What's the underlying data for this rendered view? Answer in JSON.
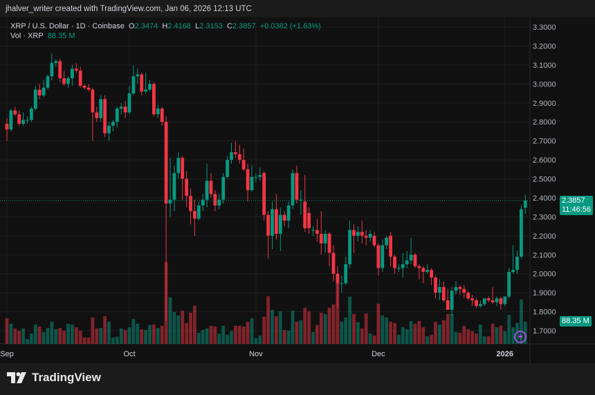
{
  "header": {
    "credit": "jhalver_writer created with TradingView.com, Jan 06, 2026 12:13 UTC"
  },
  "legend": {
    "symbol": "XRP / U.S. Dollar · 1D · Coinbase",
    "open_label": "O",
    "open": "2.3474",
    "high_label": "H",
    "high": "2.4168",
    "low_label": "L",
    "low": "2.3153",
    "close_label": "C",
    "close": "2.3857",
    "change": "+0.0382 (+1.63%)",
    "volume_label": "Vol · XRP",
    "volume": "88.35 M"
  },
  "price_tag": {
    "price": "2.3857",
    "countdown": "11:46:56"
  },
  "volume_tag": "88.35 M",
  "footer": {
    "brand": "TradingView"
  },
  "colors": {
    "up": "#089981",
    "down": "#f23645",
    "background": "#111111",
    "grid": "#1f1f1f"
  },
  "chart_data": {
    "type": "candlestick",
    "interval": "1D",
    "start_date": "2025-09-01",
    "y_ticks": [
      "3.3000",
      "3.2000",
      "3.1000",
      "3.0000",
      "2.9000",
      "2.8000",
      "2.7000",
      "2.6000",
      "2.5000",
      "2.4000",
      "2.3000",
      "2.2000",
      "2.1000",
      "2.0000",
      "1.9000",
      "1.8000",
      "1.7000"
    ],
    "ylim": [
      1.7,
      3.3
    ],
    "x_ticks": [
      {
        "label": "Sep",
        "index": 0
      },
      {
        "label": "Oct",
        "index": 30
      },
      {
        "label": "Nov",
        "index": 61
      },
      {
        "label": "Dec",
        "index": 91
      },
      {
        "label": "2026",
        "index": 122,
        "bold": true
      }
    ],
    "grid": true,
    "ohlc": [
      [
        2.79,
        2.82,
        2.7,
        2.76
      ],
      [
        2.76,
        2.87,
        2.75,
        2.86
      ],
      [
        2.86,
        2.88,
        2.83,
        2.84
      ],
      [
        2.84,
        2.86,
        2.78,
        2.79
      ],
      [
        2.79,
        2.85,
        2.78,
        2.81
      ],
      [
        2.81,
        2.83,
        2.79,
        2.81
      ],
      [
        2.81,
        2.88,
        2.8,
        2.87
      ],
      [
        2.87,
        2.99,
        2.86,
        2.97
      ],
      [
        2.97,
        3.0,
        2.92,
        2.94
      ],
      [
        2.94,
        3.02,
        2.93,
        2.98
      ],
      [
        2.98,
        3.05,
        2.97,
        3.04
      ],
      [
        3.04,
        3.16,
        3.02,
        3.11
      ],
      [
        3.11,
        3.13,
        3.09,
        3.12
      ],
      [
        3.12,
        3.13,
        3.01,
        3.03
      ],
      [
        3.03,
        3.07,
        2.99,
        3.0
      ],
      [
        3.0,
        3.04,
        2.98,
        3.03
      ],
      [
        3.03,
        3.1,
        2.99,
        3.08
      ],
      [
        3.08,
        3.11,
        3.06,
        3.07
      ],
      [
        3.07,
        3.09,
        2.98,
        2.99
      ],
      [
        2.99,
        3.0,
        2.97,
        2.98
      ],
      [
        2.98,
        3.0,
        2.96,
        2.97
      ],
      [
        2.97,
        2.98,
        2.7,
        2.85
      ],
      [
        2.85,
        2.88,
        2.8,
        2.82
      ],
      [
        2.82,
        2.94,
        2.8,
        2.92
      ],
      [
        2.92,
        2.94,
        2.72,
        2.74
      ],
      [
        2.74,
        2.8,
        2.7,
        2.78
      ],
      [
        2.78,
        2.81,
        2.75,
        2.8
      ],
      [
        2.8,
        2.88,
        2.77,
        2.87
      ],
      [
        2.87,
        2.9,
        2.84,
        2.88
      ],
      [
        2.88,
        2.91,
        2.82,
        2.85
      ],
      [
        2.85,
        2.99,
        2.84,
        2.95
      ],
      [
        2.95,
        3.1,
        2.94,
        3.04
      ],
      [
        3.04,
        3.08,
        3.0,
        3.05
      ],
      [
        3.05,
        3.06,
        2.94,
        2.96
      ],
      [
        2.96,
        3.06,
        2.95,
        2.97
      ],
      [
        2.97,
        3.02,
        2.96,
        3.0
      ],
      [
        3.0,
        3.01,
        2.83,
        2.84
      ],
      [
        2.84,
        2.89,
        2.82,
        2.87
      ],
      [
        2.87,
        2.88,
        2.78,
        2.8
      ],
      [
        2.8,
        2.83,
        1.75,
        2.37
      ],
      [
        2.37,
        2.61,
        2.3,
        2.39
      ],
      [
        2.39,
        2.57,
        2.33,
        2.53
      ],
      [
        2.53,
        2.64,
        2.5,
        2.61
      ],
      [
        2.61,
        2.62,
        2.39,
        2.5
      ],
      [
        2.5,
        2.54,
        2.35,
        2.41
      ],
      [
        2.41,
        2.45,
        2.26,
        2.33
      ],
      [
        2.33,
        2.39,
        2.2,
        2.29
      ],
      [
        2.29,
        2.38,
        2.28,
        2.36
      ],
      [
        2.36,
        2.42,
        2.33,
        2.39
      ],
      [
        2.39,
        2.58,
        2.35,
        2.49
      ],
      [
        2.49,
        2.53,
        2.4,
        2.42
      ],
      [
        2.42,
        2.44,
        2.33,
        2.36
      ],
      [
        2.36,
        2.42,
        2.34,
        2.39
      ],
      [
        2.39,
        2.53,
        2.37,
        2.51
      ],
      [
        2.51,
        2.62,
        2.5,
        2.6
      ],
      [
        2.6,
        2.69,
        2.58,
        2.64
      ],
      [
        2.64,
        2.7,
        2.61,
        2.63
      ],
      [
        2.63,
        2.68,
        2.58,
        2.6
      ],
      [
        2.6,
        2.66,
        2.54,
        2.55
      ],
      [
        2.55,
        2.58,
        2.38,
        2.44
      ],
      [
        2.44,
        2.57,
        2.43,
        2.51
      ],
      [
        2.51,
        2.53,
        2.48,
        2.51
      ],
      [
        2.51,
        2.56,
        2.49,
        2.52
      ],
      [
        2.53,
        2.54,
        2.28,
        2.31
      ],
      [
        2.31,
        2.33,
        2.08,
        2.2
      ],
      [
        2.2,
        2.38,
        2.13,
        2.34
      ],
      [
        2.34,
        2.42,
        2.18,
        2.21
      ],
      [
        2.21,
        2.35,
        2.12,
        2.31
      ],
      [
        2.31,
        2.33,
        2.25,
        2.28
      ],
      [
        2.28,
        2.38,
        2.24,
        2.36
      ],
      [
        2.36,
        2.55,
        2.34,
        2.53
      ],
      [
        2.53,
        2.57,
        2.37,
        2.39
      ],
      [
        2.39,
        2.44,
        2.31,
        2.39
      ],
      [
        2.38,
        2.52,
        2.22,
        2.24
      ],
      [
        2.32,
        2.35,
        2.21,
        2.24
      ],
      [
        2.23,
        2.25,
        2.2,
        2.23
      ],
      [
        2.23,
        2.29,
        2.17,
        2.21
      ],
      [
        2.21,
        2.33,
        2.1,
        2.16
      ],
      [
        2.16,
        2.23,
        2.11,
        2.21
      ],
      [
        2.21,
        2.22,
        2.04,
        2.11
      ],
      [
        2.11,
        2.15,
        1.96,
        2.0
      ],
      [
        2.0,
        2.04,
        1.82,
        1.95
      ],
      [
        1.95,
        1.99,
        1.9,
        1.95
      ],
      [
        1.95,
        2.09,
        1.94,
        2.05
      ],
      [
        2.05,
        2.28,
        2.03,
        2.23
      ],
      [
        2.23,
        2.26,
        2.11,
        2.2
      ],
      [
        2.2,
        2.25,
        2.17,
        2.22
      ],
      [
        2.22,
        2.28,
        2.16,
        2.2
      ],
      [
        2.2,
        2.23,
        2.15,
        2.19
      ],
      [
        2.19,
        2.23,
        2.17,
        2.21
      ],
      [
        2.2,
        2.22,
        2.14,
        2.15
      ],
      [
        2.15,
        2.16,
        1.99,
        2.03
      ],
      [
        2.03,
        2.18,
        2.01,
        2.15
      ],
      [
        2.15,
        2.2,
        2.13,
        2.19
      ],
      [
        2.2,
        2.22,
        2.04,
        2.09
      ],
      [
        2.09,
        2.1,
        2.0,
        2.03
      ],
      [
        2.03,
        2.05,
        2.01,
        2.03
      ],
      [
        2.03,
        2.11,
        1.98,
        2.05
      ],
      [
        2.05,
        2.12,
        2.03,
        2.07
      ],
      [
        2.07,
        2.19,
        2.05,
        2.1
      ],
      [
        2.1,
        2.11,
        2.03,
        2.04
      ],
      [
        2.04,
        2.05,
        1.97,
        2.03
      ],
      [
        2.03,
        2.04,
        1.95,
        2.01
      ],
      [
        2.01,
        2.05,
        2.0,
        2.02
      ],
      [
        2.02,
        2.03,
        1.94,
        1.98
      ],
      [
        1.98,
        1.99,
        1.87,
        1.9
      ],
      [
        1.9,
        1.97,
        1.86,
        1.93
      ],
      [
        1.93,
        1.96,
        1.85,
        1.86
      ],
      [
        1.86,
        1.92,
        1.81,
        1.81
      ],
      [
        1.81,
        1.93,
        1.78,
        1.91
      ],
      [
        1.91,
        1.96,
        1.89,
        1.93
      ],
      [
        1.93,
        1.94,
        1.89,
        1.92
      ],
      [
        1.92,
        1.94,
        1.87,
        1.9
      ],
      [
        1.9,
        1.91,
        1.86,
        1.87
      ],
      [
        1.87,
        1.89,
        1.83,
        1.86
      ],
      [
        1.86,
        1.87,
        1.82,
        1.83
      ],
      [
        1.83,
        1.86,
        1.82,
        1.84
      ],
      [
        1.84,
        1.87,
        1.83,
        1.87
      ],
      [
        1.87,
        1.88,
        1.85,
        1.86
      ],
      [
        1.86,
        1.93,
        1.84,
        1.85
      ],
      [
        1.85,
        1.88,
        1.83,
        1.87
      ],
      [
        1.87,
        1.88,
        1.81,
        1.84
      ],
      [
        1.84,
        1.88,
        1.83,
        1.88
      ],
      [
        1.88,
        2.03,
        1.87,
        2.01
      ],
      [
        2.01,
        2.15,
        2.0,
        2.02
      ],
      [
        2.02,
        2.12,
        2.0,
        2.09
      ],
      [
        2.09,
        2.36,
        2.08,
        2.34
      ],
      [
        2.3474,
        2.4168,
        2.3153,
        2.3857
      ]
    ],
    "volume_millions": [
      102,
      80,
      61,
      52,
      61,
      19,
      41,
      77,
      69,
      47,
      63,
      88,
      58,
      63,
      52,
      80,
      77,
      66,
      52,
      25,
      25,
      105,
      61,
      63,
      110,
      88,
      25,
      28,
      61,
      55,
      66,
      99,
      80,
      58,
      55,
      75,
      77,
      63,
      72,
      326,
      185,
      127,
      113,
      132,
      83,
      124,
      152,
      44,
      55,
      61,
      72,
      69,
      41,
      72,
      36,
      50,
      72,
      72,
      69,
      88,
      102,
      22,
      33,
      108,
      190,
      135,
      110,
      130,
      55,
      52,
      132,
      88,
      94,
      144,
      130,
      47,
      75,
      124,
      119,
      144,
      157,
      248,
      88,
      105,
      188,
      119,
      86,
      61,
      121,
      41,
      33,
      160,
      113,
      105,
      88,
      83,
      36,
      66,
      58,
      91,
      80,
      91,
      66,
      30,
      36,
      88,
      77,
      94,
      119,
      119,
      47,
      44,
      72,
      58,
      50,
      41,
      77,
      30,
      30,
      80,
      66,
      72,
      50,
      116,
      66,
      83,
      177,
      88.35
    ],
    "last_price": 2.3857
  }
}
